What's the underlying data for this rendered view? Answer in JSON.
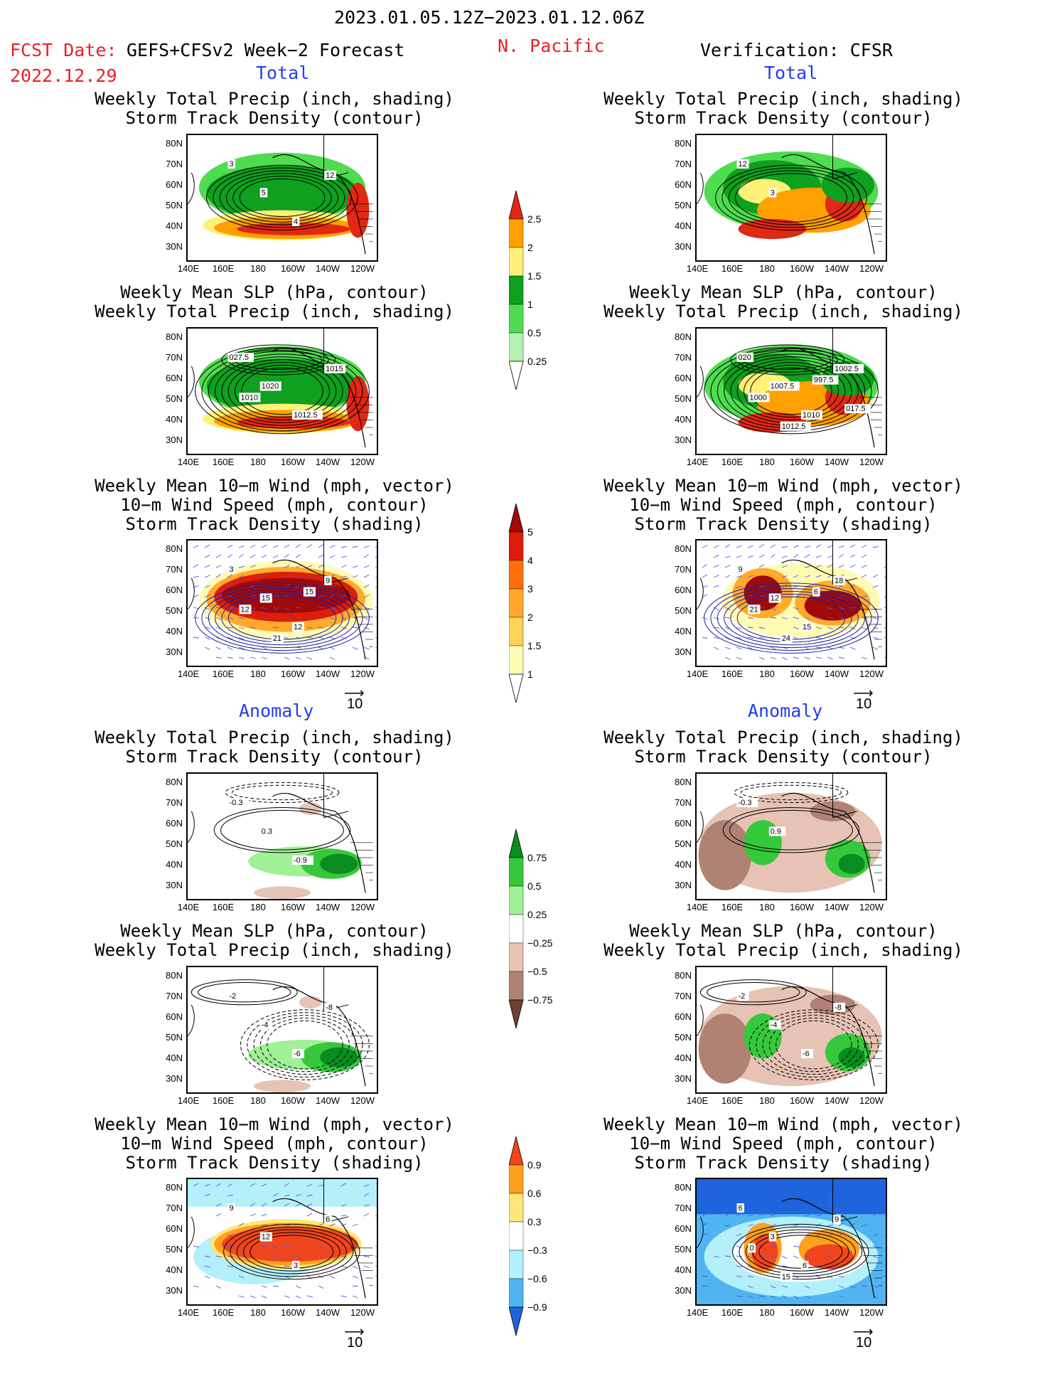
{
  "header": {
    "date_range": "2023.01.05.12Z−2023.01.12.06Z",
    "fcst_label": "FCST Date:",
    "fcst_model": "GEFS+CFSv2 Week−2 Forecast",
    "fcst_date": "2022.12.29",
    "region": "N. Pacific",
    "verification": "Verification: CFSR"
  },
  "sections": {
    "total": "Total",
    "anomaly": "Anomaly"
  },
  "panel_titles": {
    "precip_track": [
      "Weekly Total Precip (inch, shading)",
      "Storm Track Density (contour)"
    ],
    "slp_precip": [
      "Weekly Mean SLP (hPa, contour)",
      "Weekly Total Precip (inch, shading)"
    ],
    "wind_track": [
      "Weekly Mean 10−m Wind (mph, vector)",
      "10−m Wind Speed (mph, contour)",
      "Storm Track Density (shading)"
    ]
  },
  "axes": {
    "lat_labels": [
      "80N",
      "70N",
      "60N",
      "50N",
      "40N",
      "30N"
    ],
    "lon_labels": [
      "140E",
      "160E",
      "180",
      "160W",
      "140W",
      "120W"
    ]
  },
  "vector_key": "10",
  "colorbars": {
    "total_precip": {
      "colors": [
        "#b4f0b4",
        "#50dc50",
        "#0ea01e",
        "#fff07a",
        "#ffa000",
        "#e12814"
      ],
      "labels": [
        "0.25",
        "0.5",
        "1",
        "1.5",
        "2",
        "2.5"
      ]
    },
    "total_track": {
      "colors": [
        "#fffab4",
        "#ffd25a",
        "#ffaa2d",
        "#ff6e0a",
        "#dc1e0a",
        "#a00a0a"
      ],
      "labels": [
        "1",
        "1.5",
        "2",
        "3",
        "4",
        "5"
      ]
    },
    "anom_precip": {
      "colors": [
        "#0a8c1e",
        "#36c83c",
        "#a0f096",
        "#ffffff",
        "#e6c3b4",
        "#af8273",
        "#6e4132"
      ],
      "labels": [
        "0.75",
        "0.5",
        "0.25",
        "−0.25",
        "−0.5",
        "−0.75"
      ]
    },
    "anom_track": {
      "colors": [
        "#f0461e",
        "#ffa01e",
        "#ffe678",
        "#ffffff",
        "#b4f0fa",
        "#50b4f0",
        "#1e64dc"
      ],
      "labels": [
        "0.9",
        "0.6",
        "0.3",
        "−0.3",
        "−0.6",
        "−0.9"
      ]
    }
  },
  "panel_annotations": {
    "f1": [
      "3",
      "5",
      "4",
      "12"
    ],
    "f2": [
      "027.5",
      "1020",
      "1012.5",
      "1015",
      "1010"
    ],
    "f3": [
      "3",
      "15",
      "12",
      "9",
      "12",
      "21",
      "15"
    ],
    "f4": [
      "-0.3",
      "0.3",
      "-0.9"
    ],
    "f5": [
      "-2",
      "-4",
      "-6",
      "-8"
    ],
    "f6": [
      "9",
      "12",
      "3",
      "6"
    ],
    "v1": [
      "12",
      "3"
    ],
    "v2": [
      "020",
      "1007.5",
      "1010",
      "1002.5",
      "1000",
      "1012.5",
      "997.5",
      "017.5"
    ],
    "v3": [
      "9",
      "12",
      "15",
      "18",
      "21",
      "24",
      "6"
    ],
    "v4": [
      "-0.3",
      "0.9"
    ],
    "v5": [
      "-2",
      "-4",
      "-6",
      "-8"
    ],
    "v6": [
      "6",
      "3",
      "6",
      "9",
      "0",
      "15"
    ]
  }
}
